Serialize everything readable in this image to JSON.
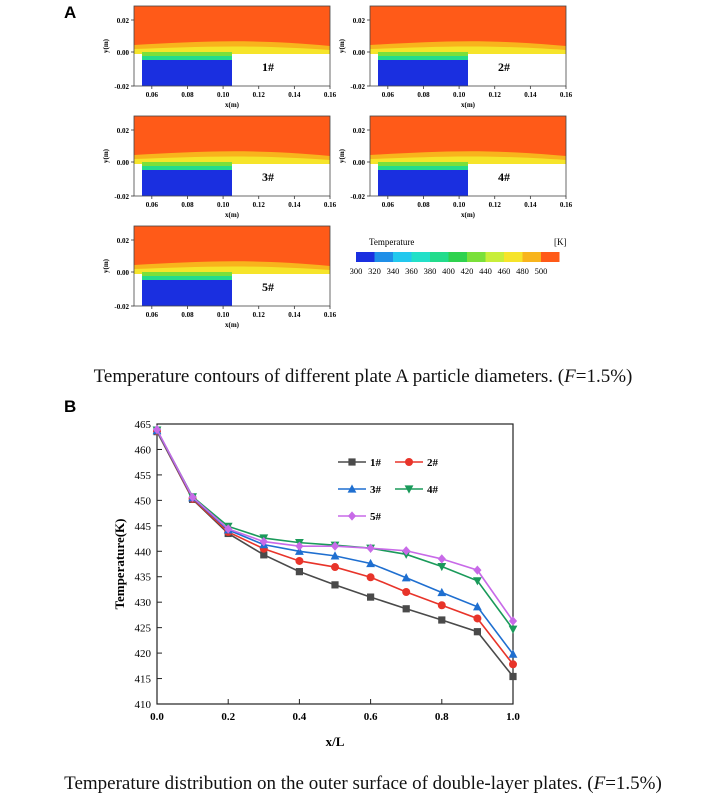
{
  "panel_a": {
    "letter": "A",
    "caption_main": "Temperature contours of different plate A particle diameters. (",
    "caption_var": "F",
    "caption_tail": "=1.5%)",
    "ylabel": "y(m)",
    "xlabel": "x(m)",
    "y_ticks": [
      "0.02",
      "0.00",
      "-0.02"
    ],
    "x_ticks": [
      "0.06",
      "0.08",
      "0.10",
      "0.12",
      "0.14",
      "0.16"
    ],
    "cases": [
      "1#",
      "2#",
      "3#",
      "4#",
      "5#"
    ],
    "colorbar": {
      "title": "Temperature",
      "unit": "[K]",
      "ticks": [
        "300",
        "320",
        "340",
        "360",
        "380",
        "400",
        "420",
        "440",
        "460",
        "480",
        "500"
      ],
      "colors": [
        "#1a2fe0",
        "#1f8fe8",
        "#22c8ee",
        "#22e0c8",
        "#22dc8c",
        "#2ed24e",
        "#7ae03a",
        "#c8ee3a",
        "#f6e42a",
        "#f8b41c",
        "#ff5a18"
      ]
    }
  },
  "panel_b": {
    "letter": "B",
    "caption_main": "Temperature distribution on the outer surface of double-layer plates. (",
    "caption_var": "F",
    "caption_tail": "=1.5%)"
  },
  "chart_data": {
    "type": "line",
    "xlabel": "x/L",
    "ylabel": "Temperature(K)",
    "xlim": [
      0,
      1.0
    ],
    "ylim": [
      410,
      465
    ],
    "x_ticks": [
      0.0,
      0.2,
      0.4,
      0.6,
      0.8,
      1.0
    ],
    "y_ticks": [
      410,
      415,
      420,
      425,
      430,
      435,
      440,
      445,
      450,
      455,
      460,
      465
    ],
    "x": [
      0,
      0.1,
      0.2,
      0.3,
      0.4,
      0.5,
      0.6,
      0.7,
      0.8,
      0.9,
      1.0
    ],
    "legend_position": "top-right",
    "series": [
      {
        "name": "1#",
        "color": "#4a4a4a",
        "marker": "square",
        "values": [
          463.5,
          450.2,
          443.5,
          439.3,
          436.0,
          433.4,
          431.0,
          428.7,
          426.5,
          424.2,
          415.4
        ]
      },
      {
        "name": "2#",
        "color": "#e8342a",
        "marker": "circle",
        "values": [
          463.6,
          450.3,
          443.8,
          440.5,
          438.1,
          436.9,
          434.9,
          432.0,
          429.4,
          426.8,
          417.8
        ]
      },
      {
        "name": "3#",
        "color": "#1f6fd0",
        "marker": "triangle-up",
        "values": [
          463.7,
          450.5,
          444.2,
          441.3,
          440.0,
          439.1,
          437.6,
          434.8,
          431.9,
          429.1,
          419.8
        ]
      },
      {
        "name": "4#",
        "color": "#1a9a5a",
        "marker": "triangle-down",
        "values": [
          463.8,
          450.7,
          444.9,
          442.6,
          441.7,
          441.2,
          440.6,
          439.4,
          437.0,
          434.2,
          424.7
        ]
      },
      {
        "name": "5#",
        "color": "#c86ae8",
        "marker": "diamond",
        "values": [
          463.9,
          450.6,
          444.4,
          441.9,
          441.0,
          441.0,
          440.6,
          440.1,
          438.5,
          436.3,
          426.3
        ]
      }
    ]
  }
}
